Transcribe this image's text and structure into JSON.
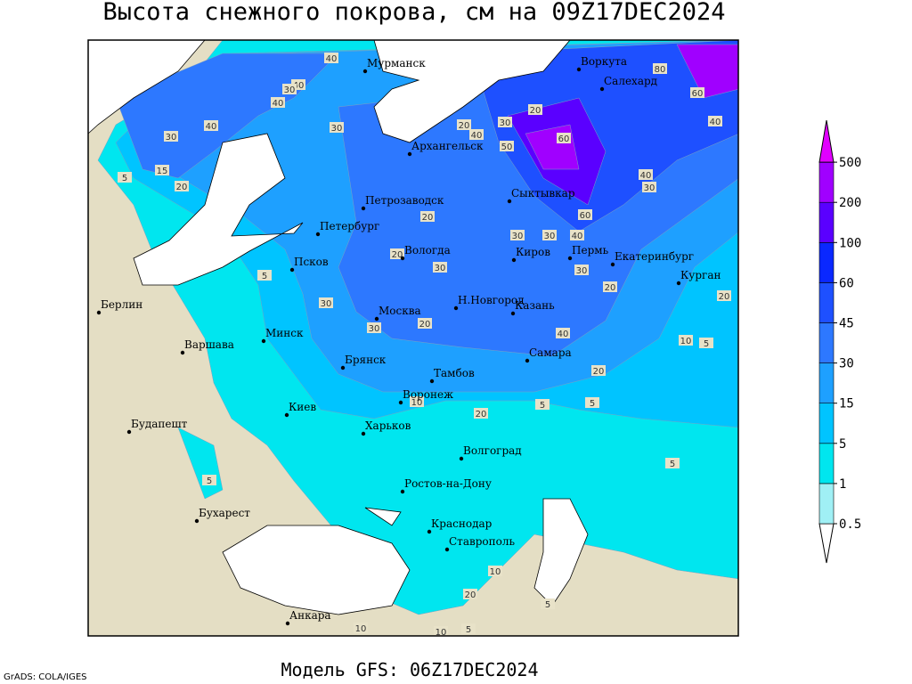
{
  "title": "Высота снежного покрова, см на 09Z17DEC2024",
  "footer": "Модель GFS: 06Z17DEC2024",
  "credit": "GrADS: COLA/IGES",
  "cities": [
    "Мурманск",
    "Воркута",
    "Салехард",
    "Архангельск",
    "Сыктывкар",
    "Петрозаводск",
    "Петербург",
    "Вологда",
    "Киров",
    "Пермь",
    "Екатеринбург",
    "Курган",
    "Псков",
    "Берлин",
    "Н.Новгород",
    "Москва",
    "Казань",
    "Минск",
    "Варшава",
    "Самара",
    "Брянск",
    "Тамбов",
    "Воронеж",
    "Киев",
    "Будапешт",
    "Харьков",
    "Волгоград",
    "Ростов-на-Дону",
    "Бухарест",
    "Краснодар",
    "Ставрополь",
    "Анкара"
  ],
  "contour_labels": [
    40,
    40,
    30,
    40,
    40,
    30,
    15,
    20,
    5,
    30,
    20,
    30,
    20,
    40,
    60,
    50,
    80,
    60,
    40,
    40,
    30,
    20,
    20,
    30,
    30,
    30,
    40,
    60,
    30,
    20,
    20,
    5,
    30,
    30,
    20,
    40,
    10,
    5,
    20,
    10,
    5,
    20,
    5,
    5,
    5,
    10,
    20,
    5,
    10,
    10,
    5
  ],
  "colorbar": {
    "levels": [
      0.5,
      1,
      5,
      15,
      30,
      45,
      60,
      100,
      200,
      500
    ],
    "colors": [
      "#ffffff",
      "#a0f0f5",
      "#00e6ef",
      "#00c4ff",
      "#1ea0ff",
      "#2d78ff",
      "#1e50ff",
      "#0a28ff",
      "#5a00ff",
      "#a000ff",
      "#e100ff"
    ]
  }
}
